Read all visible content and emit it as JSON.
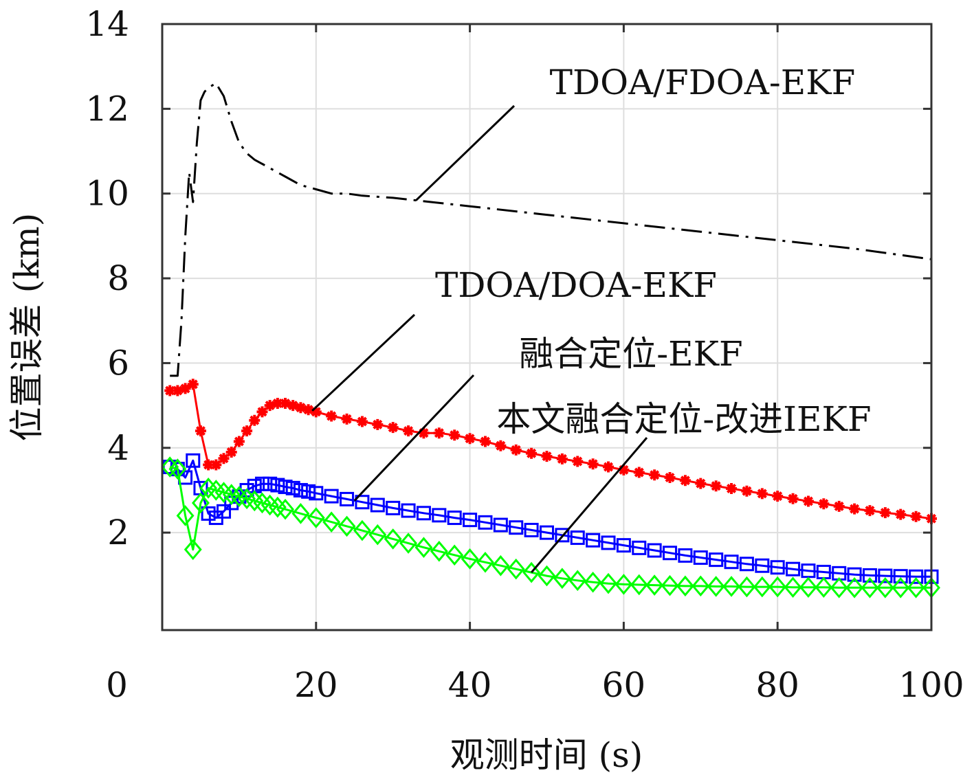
{
  "chart_data": {
    "type": "line",
    "xlabel": "观测时间 (s)",
    "ylabel": "位置误差 (km)",
    "xlim": [
      0,
      100
    ],
    "ylim": [
      -0.3,
      14
    ],
    "x_ticks": [
      0,
      20,
      40,
      60,
      80,
      100
    ],
    "y_ticks": [
      2,
      4,
      6,
      8,
      10,
      12,
      14
    ],
    "grid": true,
    "legend": "none (series are named by callout annotations with leader lines)",
    "series": [
      {
        "name": "TDOA/FDOA-EKF",
        "color": "#000000",
        "style": "dash-dot",
        "marker": "none",
        "x": [
          1,
          2,
          2.5,
          3,
          3.5,
          4,
          4.5,
          5,
          5.5,
          6,
          7,
          8,
          9,
          10,
          11,
          12,
          13,
          14,
          16,
          18,
          20,
          22,
          24,
          26,
          30,
          40,
          50,
          60,
          70,
          80,
          90,
          100
        ],
        "y": [
          5.7,
          5.7,
          7.0,
          9.0,
          10.5,
          9.8,
          11.2,
          12.2,
          12.4,
          12.5,
          12.6,
          12.3,
          11.7,
          11.2,
          10.95,
          10.8,
          10.7,
          10.6,
          10.4,
          10.2,
          10.1,
          10.0,
          10.0,
          9.95,
          9.9,
          9.7,
          9.5,
          9.3,
          9.1,
          8.9,
          8.7,
          8.45
        ]
      },
      {
        "name": "TDOA/DOA-EKF",
        "color": "#ff0000",
        "style": "solid",
        "marker": "asterisk",
        "x": [
          1,
          2,
          3,
          4,
          5,
          6,
          7,
          8,
          9,
          10,
          11,
          12,
          13,
          14,
          15,
          16,
          17,
          18,
          19,
          20,
          22,
          24,
          26,
          28,
          30,
          32,
          34,
          36,
          38,
          40,
          42,
          44,
          46,
          48,
          50,
          52,
          54,
          56,
          58,
          60,
          62,
          64,
          66,
          68,
          70,
          72,
          74,
          76,
          78,
          80,
          82,
          84,
          86,
          88,
          90,
          92,
          94,
          96,
          98,
          100
        ],
        "y": [
          5.35,
          5.35,
          5.4,
          5.5,
          4.4,
          3.6,
          3.6,
          3.75,
          3.9,
          4.15,
          4.4,
          4.65,
          4.85,
          5.0,
          5.05,
          5.05,
          5.0,
          4.95,
          4.9,
          4.85,
          4.75,
          4.68,
          4.62,
          4.55,
          4.48,
          4.4,
          4.35,
          4.35,
          4.3,
          4.22,
          4.15,
          4.05,
          3.95,
          3.87,
          3.8,
          3.74,
          3.68,
          3.62,
          3.55,
          3.48,
          3.42,
          3.36,
          3.3,
          3.23,
          3.16,
          3.1,
          3.04,
          2.98,
          2.92,
          2.86,
          2.8,
          2.74,
          2.68,
          2.62,
          2.56,
          2.52,
          2.47,
          2.43,
          2.38,
          2.33
        ]
      },
      {
        "name": "融合定位-EKF",
        "color": "#0000ff",
        "style": "solid",
        "marker": "square",
        "x": [
          1,
          2,
          3,
          4,
          5,
          6,
          7,
          8,
          9,
          10,
          11,
          12,
          13,
          14,
          15,
          16,
          17,
          18,
          19,
          20,
          22,
          24,
          26,
          28,
          30,
          32,
          34,
          36,
          38,
          40,
          42,
          44,
          46,
          48,
          50,
          52,
          54,
          56,
          58,
          60,
          62,
          64,
          66,
          68,
          70,
          72,
          74,
          76,
          78,
          80,
          82,
          84,
          86,
          88,
          90,
          92,
          94,
          96,
          98,
          100
        ],
        "y": [
          3.55,
          3.5,
          3.3,
          3.7,
          3.05,
          2.45,
          2.35,
          2.5,
          2.7,
          2.85,
          3.0,
          3.1,
          3.15,
          3.15,
          3.12,
          3.08,
          3.05,
          3.0,
          2.97,
          2.93,
          2.86,
          2.79,
          2.72,
          2.65,
          2.58,
          2.52,
          2.46,
          2.41,
          2.35,
          2.3,
          2.24,
          2.18,
          2.12,
          2.06,
          2.0,
          1.94,
          1.88,
          1.82,
          1.76,
          1.7,
          1.64,
          1.58,
          1.52,
          1.46,
          1.41,
          1.36,
          1.31,
          1.26,
          1.22,
          1.18,
          1.14,
          1.1,
          1.07,
          1.04,
          1.01,
          0.99,
          0.98,
          0.97,
          0.96,
          0.96
        ]
      },
      {
        "name": "本文融合定位-改进IEKF",
        "color": "#00ff00",
        "style": "solid",
        "marker": "diamond",
        "x": [
          1,
          2,
          3,
          4,
          5,
          6,
          7,
          8,
          9,
          10,
          11,
          12,
          13,
          14,
          15,
          16,
          18,
          20,
          22,
          24,
          26,
          28,
          30,
          32,
          34,
          36,
          38,
          40,
          42,
          44,
          46,
          48,
          50,
          52,
          54,
          56,
          58,
          60,
          62,
          64,
          66,
          68,
          70,
          72,
          74,
          76,
          78,
          80,
          82,
          84,
          86,
          88,
          90,
          92,
          94,
          96,
          98,
          100
        ],
        "y": [
          3.55,
          3.5,
          2.4,
          1.6,
          2.7,
          3.05,
          3.0,
          2.95,
          2.9,
          2.85,
          2.8,
          2.75,
          2.7,
          2.65,
          2.6,
          2.55,
          2.45,
          2.35,
          2.25,
          2.15,
          2.05,
          1.95,
          1.85,
          1.75,
          1.65,
          1.56,
          1.47,
          1.38,
          1.3,
          1.22,
          1.14,
          1.06,
          0.98,
          0.92,
          0.87,
          0.83,
          0.8,
          0.78,
          0.77,
          0.76,
          0.75,
          0.74,
          0.74,
          0.73,
          0.73,
          0.72,
          0.72,
          0.72,
          0.71,
          0.71,
          0.71,
          0.7,
          0.7,
          0.7,
          0.7,
          0.7,
          0.7,
          0.7
        ]
      }
    ],
    "annotations": [
      {
        "text": "TDOA/FDOA-EKF",
        "series": "TDOA/FDOA-EKF"
      },
      {
        "text": "TDOA/DOA-EKF",
        "series": "TDOA/DOA-EKF"
      },
      {
        "text": "融合定位-EKF",
        "series": "融合定位-EKF"
      },
      {
        "text": "本文融合定位-改进IEKF",
        "series": "本文融合定位-改进IEKF"
      }
    ]
  }
}
